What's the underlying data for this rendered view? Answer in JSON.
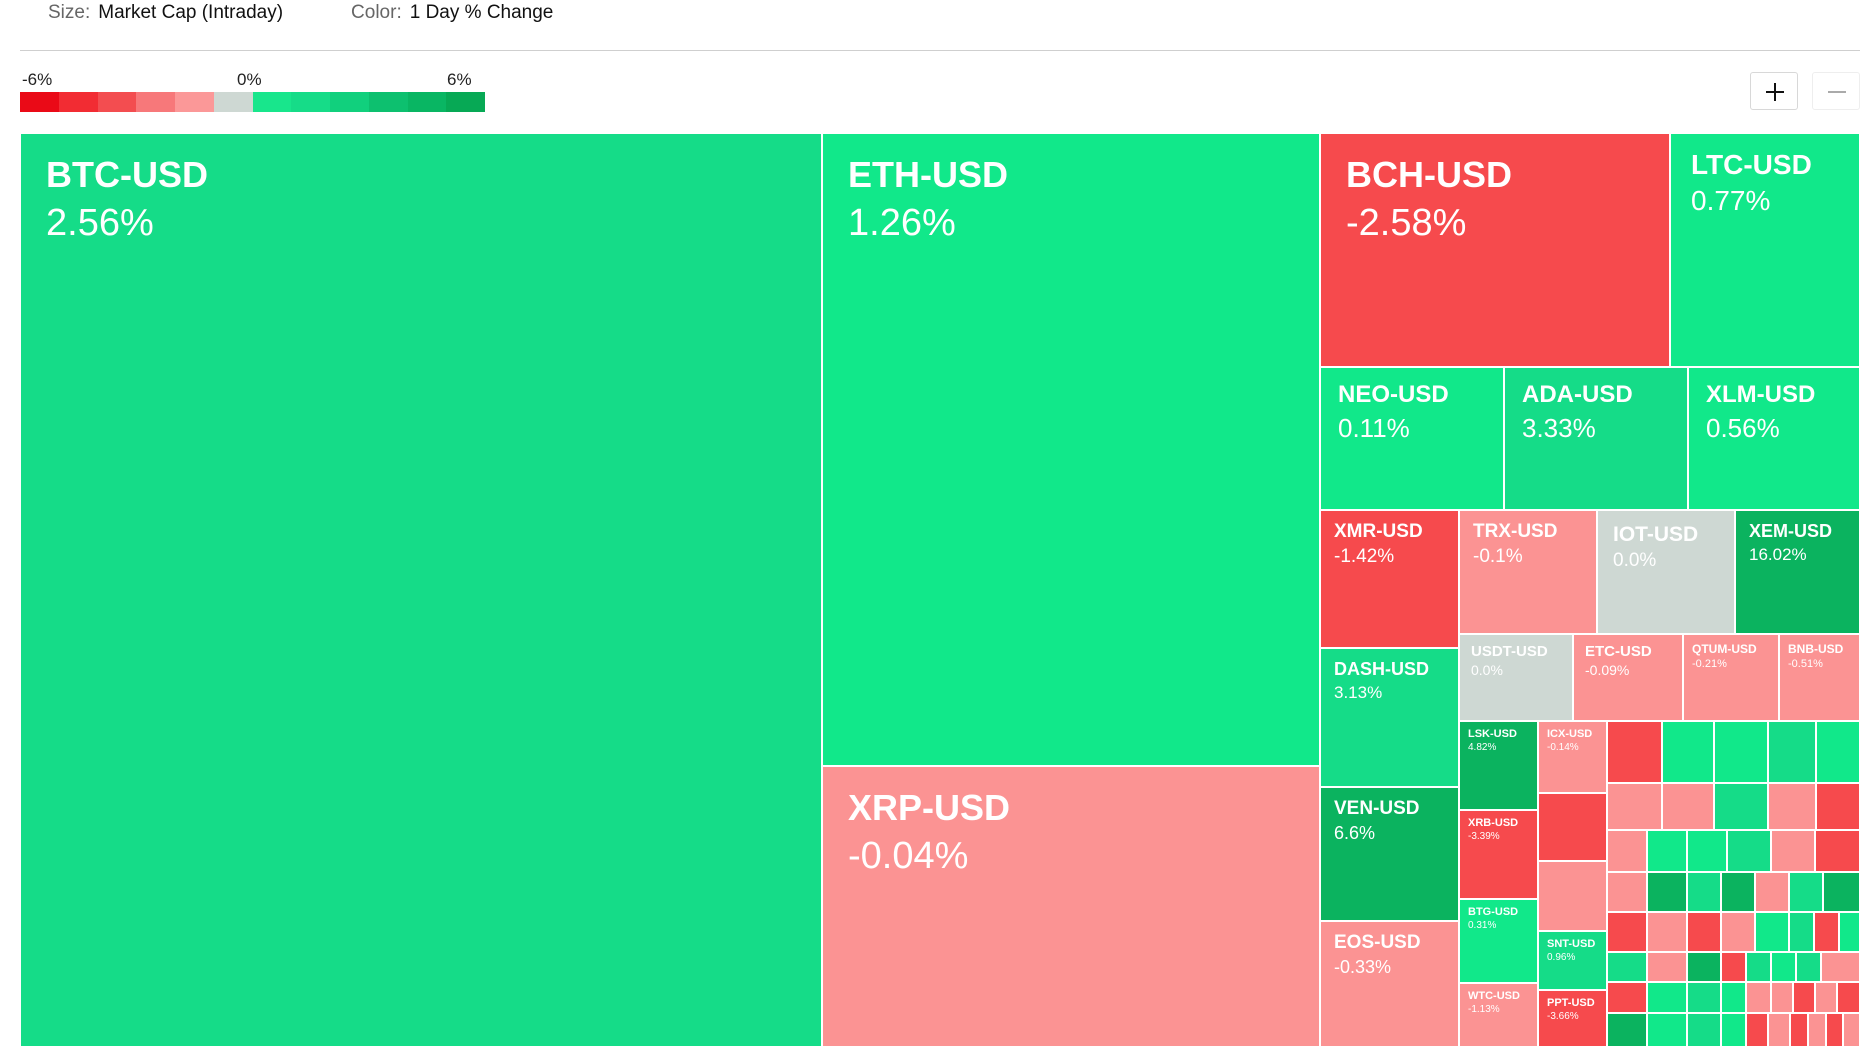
{
  "header": {
    "size_label": "Size:",
    "size_value": "Market Cap (Intraday)",
    "color_label": "Color:",
    "color_value": "1 Day % Change"
  },
  "legend": {
    "min_label": "-6%",
    "mid_label": "0%",
    "max_label": "6%",
    "colors": [
      "#ea0a17",
      "#f22c33",
      "#f34d50",
      "#f7787a",
      "#fb9898",
      "#ced8d3",
      "#18e68c",
      "#16dc88",
      "#11d07d",
      "#0dc06f",
      "#09b663",
      "#07a955"
    ]
  },
  "controls": {
    "zoom_in_icon": "plus-icon",
    "zoom_out_icon": "minus-icon"
  },
  "colors": {
    "strong_green": "#0bb35f",
    "green": "#15dc88",
    "bright_green": "#11e88a",
    "red": "#f64a4d",
    "salmon": "#fb9393",
    "neutral": "#ced8d3"
  },
  "tiles": [
    {
      "symbol": "BTC-USD",
      "change": "2.56%"
    },
    {
      "symbol": "ETH-USD",
      "change": "1.26%"
    },
    {
      "symbol": "XRP-USD",
      "change": "-0.04%"
    },
    {
      "symbol": "BCH-USD",
      "change": "-2.58%"
    },
    {
      "symbol": "LTC-USD",
      "change": "0.77%"
    },
    {
      "symbol": "NEO-USD",
      "change": "0.11%"
    },
    {
      "symbol": "ADA-USD",
      "change": "3.33%"
    },
    {
      "symbol": "XLM-USD",
      "change": "0.56%"
    },
    {
      "symbol": "XMR-USD",
      "change": "-1.42%"
    },
    {
      "symbol": "TRX-USD",
      "change": "-0.1%"
    },
    {
      "symbol": "IOT-USD",
      "change": "0.0%"
    },
    {
      "symbol": "XEM-USD",
      "change": "16.02%"
    },
    {
      "symbol": "DASH-USD",
      "change": "3.13%"
    },
    {
      "symbol": "VEN-USD",
      "change": "6.6%"
    },
    {
      "symbol": "EOS-USD",
      "change": "-0.33%"
    },
    {
      "symbol": "USDT-USD",
      "change": "0.0%"
    },
    {
      "symbol": "ETC-USD",
      "change": "-0.09%"
    },
    {
      "symbol": "QTUM-USD",
      "change": "-0.21%"
    },
    {
      "symbol": "BNB-USD",
      "change": "-0.51%"
    },
    {
      "symbol": "LSK-USD",
      "change": "4.82%"
    },
    {
      "symbol": "ICX-USD",
      "change": "-0.14%"
    },
    {
      "symbol": "XRB-USD",
      "change": "-3.39%"
    },
    {
      "symbol": "BTG-USD",
      "change": "0.31%"
    },
    {
      "symbol": "WTC-USD",
      "change": "-1.13%"
    },
    {
      "symbol": "SNT-USD",
      "change": "0.96%"
    },
    {
      "symbol": "PPT-USD",
      "change": "-3.66%"
    }
  ]
}
